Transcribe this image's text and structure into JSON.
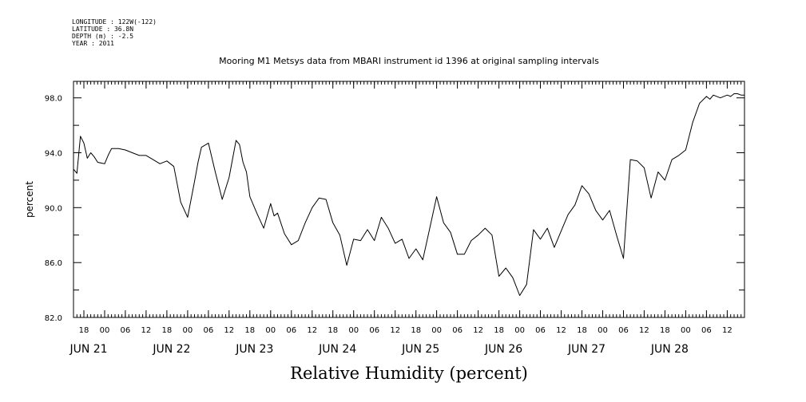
{
  "header": {
    "meta_lines": [
      "LONGITUDE : 122W(-122)",
      "LATITUDE : 36.8N",
      "DEPTH (m) : -2.5",
      "YEAR : 2011"
    ]
  },
  "chart_data": {
    "type": "line",
    "title": "Mooring M1 Metsys data from MBARI instrument id 1396 at original sampling intervals",
    "xlabel": "Relative Humidity (percent)",
    "ylabel": "percent",
    "ylim": [
      82.0,
      99.2
    ],
    "y_ticks": [
      "82.0",
      "86.0",
      "90.0",
      "94.0",
      "98.0"
    ],
    "xlim": [
      "2011-06-20T15:00",
      "2011-06-28T17:00"
    ],
    "x_hour_ticks": [
      "18",
      "00",
      "06",
      "12",
      "18",
      "00",
      "06",
      "12",
      "18",
      "00",
      "06",
      "12",
      "18",
      "00",
      "06",
      "12",
      "18",
      "00",
      "06",
      "12",
      "18",
      "00",
      "06",
      "12",
      "18",
      "00",
      "06",
      "12",
      "18",
      "00",
      "06",
      "12"
    ],
    "x_date_labels": [
      "JUN 21",
      "JUN 22",
      "JUN 23",
      "JUN 24",
      "JUN 25",
      "JUN 26",
      "JUN 27",
      "JUN 28"
    ],
    "grid": false,
    "series": [
      {
        "x": [
          "2011-06-20T15:00",
          "2011-06-20T16:00",
          "2011-06-20T17:00",
          "2011-06-20T18:00",
          "2011-06-20T19:00",
          "2011-06-20T20:00",
          "2011-06-20T21:00",
          "2011-06-20T22:00",
          "2011-06-21T00:00",
          "2011-06-21T01:00",
          "2011-06-21T02:00",
          "2011-06-21T04:00",
          "2011-06-21T06:00",
          "2011-06-21T08:00",
          "2011-06-21T10:00",
          "2011-06-21T12:00",
          "2011-06-21T14:00",
          "2011-06-21T16:00",
          "2011-06-21T18:00",
          "2011-06-21T20:00",
          "2011-06-21T22:00",
          "2011-06-22T00:00",
          "2011-06-22T02:00",
          "2011-06-22T03:00",
          "2011-06-22T04:00",
          "2011-06-22T06:00",
          "2011-06-22T08:00",
          "2011-06-22T10:00",
          "2011-06-22T12:00",
          "2011-06-22T14:00",
          "2011-06-22T15:00",
          "2011-06-22T16:00",
          "2011-06-22T17:00",
          "2011-06-22T18:00",
          "2011-06-22T20:00",
          "2011-06-22T22:00",
          "2011-06-23T00:00",
          "2011-06-23T01:00",
          "2011-06-23T02:00",
          "2011-06-23T04:00",
          "2011-06-23T06:00",
          "2011-06-23T08:00",
          "2011-06-23T10:00",
          "2011-06-23T12:00",
          "2011-06-23T14:00",
          "2011-06-23T16:00",
          "2011-06-23T18:00",
          "2011-06-23T20:00",
          "2011-06-23T22:00",
          "2011-06-24T00:00",
          "2011-06-24T02:00",
          "2011-06-24T04:00",
          "2011-06-24T06:00",
          "2011-06-24T08:00",
          "2011-06-24T10:00",
          "2011-06-24T12:00",
          "2011-06-24T14:00",
          "2011-06-24T16:00",
          "2011-06-24T18:00",
          "2011-06-24T20:00",
          "2011-06-24T22:00",
          "2011-06-25T00:00",
          "2011-06-25T02:00",
          "2011-06-25T04:00",
          "2011-06-25T06:00",
          "2011-06-25T08:00",
          "2011-06-25T10:00",
          "2011-06-25T12:00",
          "2011-06-25T14:00",
          "2011-06-25T16:00",
          "2011-06-25T18:00",
          "2011-06-25T20:00",
          "2011-06-25T22:00",
          "2011-06-26T00:00",
          "2011-06-26T02:00",
          "2011-06-26T04:00",
          "2011-06-26T06:00",
          "2011-06-26T08:00",
          "2011-06-26T10:00",
          "2011-06-26T12:00",
          "2011-06-26T14:00",
          "2011-06-26T16:00",
          "2011-06-26T18:00",
          "2011-06-26T20:00",
          "2011-06-26T22:00",
          "2011-06-27T00:00",
          "2011-06-27T02:00",
          "2011-06-27T04:00",
          "2011-06-27T06:00",
          "2011-06-27T08:00",
          "2011-06-27T10:00",
          "2011-06-27T12:00",
          "2011-06-27T14:00",
          "2011-06-27T16:00",
          "2011-06-27T18:00",
          "2011-06-27T20:00",
          "2011-06-27T22:00",
          "2011-06-28T00:00",
          "2011-06-28T02:00",
          "2011-06-28T04:00",
          "2011-06-28T06:00",
          "2011-06-28T07:00",
          "2011-06-28T08:00",
          "2011-06-28T10:00",
          "2011-06-28T12:00",
          "2011-06-28T13:00",
          "2011-06-28T14:00",
          "2011-06-28T15:00",
          "2011-06-28T16:00",
          "2011-06-28T17:00"
        ],
        "y": [
          92.8,
          92.5,
          95.2,
          94.7,
          93.6,
          94.0,
          93.7,
          93.3,
          93.2,
          93.8,
          94.3,
          94.3,
          94.2,
          94.0,
          93.8,
          93.8,
          93.5,
          93.2,
          93.4,
          93.0,
          90.4,
          89.3,
          91.9,
          93.3,
          94.4,
          94.7,
          92.6,
          90.6,
          92.2,
          94.9,
          94.6,
          93.3,
          92.6,
          90.8,
          89.6,
          88.5,
          90.3,
          89.4,
          89.6,
          88.1,
          87.3,
          87.6,
          88.9,
          90.0,
          90.7,
          90.6,
          88.9,
          88.0,
          85.8,
          87.7,
          87.6,
          88.4,
          87.6,
          89.3,
          88.5,
          87.4,
          87.7,
          86.3,
          87.0,
          86.2,
          88.5,
          90.8,
          88.9,
          88.2,
          86.6,
          86.6,
          87.6,
          88.0,
          88.5,
          88.0,
          85.0,
          85.6,
          84.9,
          83.6,
          84.4,
          88.4,
          87.7,
          88.5,
          87.1,
          88.3,
          89.5,
          90.2,
          91.6,
          91.0,
          89.8,
          89.1,
          89.8,
          88.0,
          86.3,
          93.5,
          93.4,
          92.9,
          90.7,
          92.6,
          92.0,
          93.5,
          93.8,
          94.2,
          96.2,
          97.6,
          98.1,
          97.9,
          98.2,
          98.0,
          98.2,
          98.1,
          98.3,
          98.3,
          98.2,
          98.2
        ]
      }
    ]
  }
}
